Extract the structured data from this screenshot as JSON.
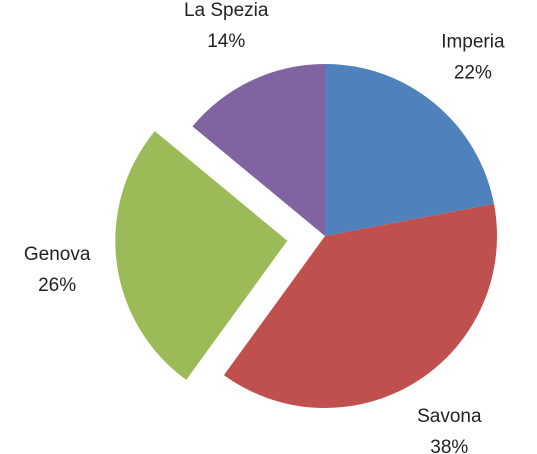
{
  "chart_data": {
    "type": "pie",
    "categories": [
      "Imperia",
      "Savona",
      "Genova",
      "La Spezia"
    ],
    "values": [
      22,
      38,
      26,
      14
    ],
    "value_labels": [
      "22%",
      "38%",
      "26%",
      "14%"
    ],
    "colors": [
      "#4f81bd",
      "#c0504d",
      "#9bbb59",
      "#8064a2"
    ],
    "explode": [
      false,
      false,
      true,
      false
    ]
  }
}
